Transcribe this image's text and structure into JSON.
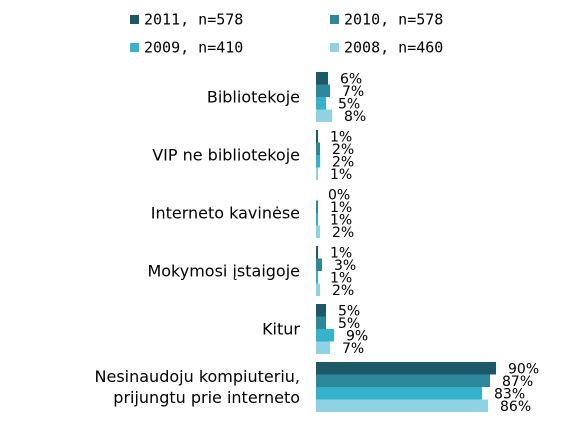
{
  "chart_data": {
    "type": "bar",
    "orientation": "horizontal",
    "categories": [
      "Bibliotekoje",
      "VIP ne bibliotekoje",
      "Interneto kavinėse",
      "Mokymosi įstaigoje",
      "Kitur",
      "Nesinaudoju kompiuteriu,\nprijungtu prie interneto"
    ],
    "series": [
      {
        "name": "2011, n=578",
        "color": "#1d5866",
        "values": [
          6,
          1,
          0,
          1,
          5,
          90
        ],
        "value_labels": [
          "6%",
          "1%",
          "0%",
          "1%",
          "5%",
          "90%"
        ]
      },
      {
        "name": "2010, n=578",
        "color": "#2b8799",
        "values": [
          7,
          2,
          1,
          3,
          5,
          87
        ],
        "value_labels": [
          "7%",
          "2%",
          "1%",
          "3%",
          "5%",
          "87%"
        ]
      },
      {
        "name": "2009, n=410",
        "color": "#36b3cc",
        "values": [
          5,
          2,
          1,
          1,
          9,
          83
        ],
        "value_labels": [
          "5%",
          "2%",
          "1%",
          "1%",
          "9%",
          "83%"
        ]
      },
      {
        "name": "2008, n=460",
        "color": "#8fd2e3",
        "values": [
          8,
          1,
          2,
          2,
          7,
          86
        ],
        "value_labels": [
          "8%",
          "1%",
          "2%",
          "2%",
          "7%",
          "86%"
        ]
      }
    ]
  }
}
